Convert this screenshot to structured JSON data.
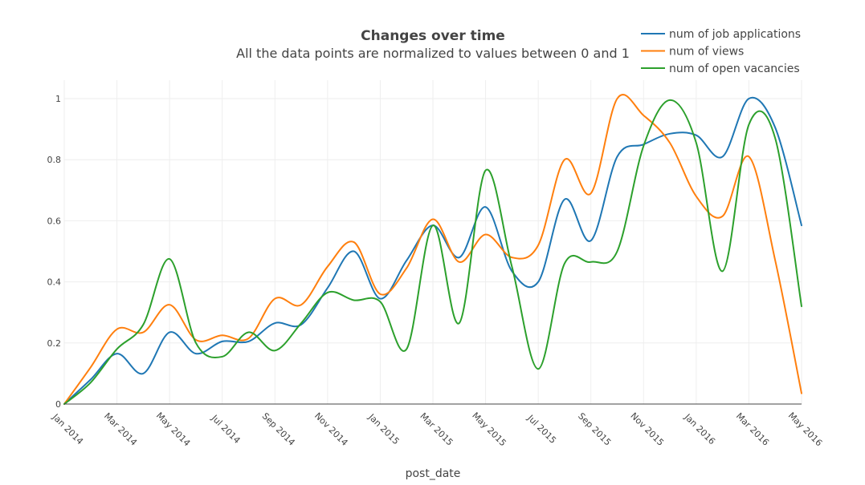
{
  "chart_data": {
    "type": "line",
    "title": "Changes over time",
    "subtitle": "All the data points are normalized to values between 0 and 1",
    "xlabel": "post_date",
    "ylabel": "",
    "ylim": [
      0,
      1
    ],
    "yticks": [
      0,
      0.2,
      0.4,
      0.6,
      0.8,
      1
    ],
    "ytick_labels": [
      "0",
      "0.2",
      "0.4",
      "0.6",
      "0.8",
      "1"
    ],
    "xticks": [
      "2014-01",
      "2014-03",
      "2014-05",
      "2014-07",
      "2014-09",
      "2014-11",
      "2015-01",
      "2015-03",
      "2015-05",
      "2015-07",
      "2015-09",
      "2015-11",
      "2016-01",
      "2016-03",
      "2016-05"
    ],
    "xtick_labels": [
      "Jan 2014",
      "Mar 2014",
      "May 2014",
      "Jul 2014",
      "Sep 2014",
      "Nov 2014",
      "Jan 2015",
      "Mar 2015",
      "May 2015",
      "Jul 2015",
      "Sep 2015",
      "Nov 2015",
      "Jan 2016",
      "Mar 2016",
      "May 2016"
    ],
    "x": [
      "2014-01",
      "2014-02",
      "2014-03",
      "2014-04",
      "2014-05",
      "2014-06",
      "2014-07",
      "2014-08",
      "2014-09",
      "2014-10",
      "2014-11",
      "2014-12",
      "2015-01",
      "2015-02",
      "2015-03",
      "2015-04",
      "2015-05",
      "2015-06",
      "2015-07",
      "2015-08",
      "2015-09",
      "2015-10",
      "2015-11",
      "2015-12",
      "2016-01",
      "2016-02",
      "2016-03",
      "2016-04",
      "2016-05"
    ],
    "legend_position": "top-right",
    "grid": true,
    "series": [
      {
        "name": "num of job applications",
        "color": "#1f77b4",
        "values": [
          0.0,
          0.08,
          0.165,
          0.1,
          0.235,
          0.165,
          0.205,
          0.205,
          0.265,
          0.26,
          0.38,
          0.5,
          0.345,
          0.47,
          0.585,
          0.48,
          0.645,
          0.435,
          0.4,
          0.67,
          0.535,
          0.81,
          0.85,
          0.885,
          0.88,
          0.81,
          1.0,
          0.905,
          0.585
        ]
      },
      {
        "name": "num of views",
        "color": "#ff7f0e",
        "values": [
          0.0,
          0.12,
          0.245,
          0.235,
          0.325,
          0.21,
          0.225,
          0.215,
          0.345,
          0.325,
          0.45,
          0.53,
          0.36,
          0.445,
          0.605,
          0.465,
          0.555,
          0.48,
          0.52,
          0.8,
          0.69,
          1.0,
          0.945,
          0.855,
          0.68,
          0.615,
          0.81,
          0.47,
          0.035
        ]
      },
      {
        "name": "num of open vacancies",
        "color": "#2ca02c",
        "values": [
          0.0,
          0.07,
          0.18,
          0.26,
          0.475,
          0.2,
          0.155,
          0.235,
          0.175,
          0.265,
          0.365,
          0.34,
          0.335,
          0.18,
          0.585,
          0.265,
          0.765,
          0.45,
          0.115,
          0.46,
          0.465,
          0.5,
          0.845,
          0.995,
          0.855,
          0.435,
          0.915,
          0.87,
          0.32
        ]
      }
    ]
  }
}
